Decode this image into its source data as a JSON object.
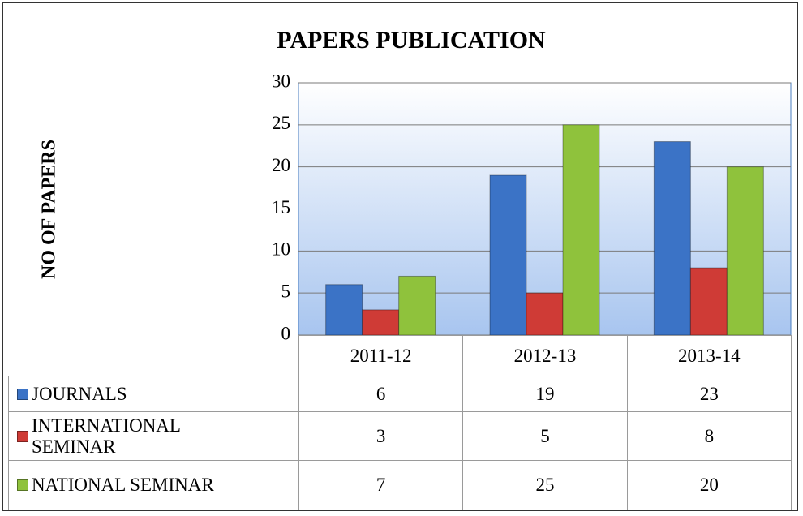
{
  "chart_data": {
    "type": "bar",
    "title": "PAPERS PUBLICATION",
    "y_label": "NO OF PAPERS",
    "categories": [
      "2011-12",
      "2012-13",
      "2013-14"
    ],
    "series": [
      {
        "name": "JOURNALS",
        "color": "#3b73c6",
        "values": [
          6,
          19,
          23
        ]
      },
      {
        "name": "INTERNATIONAL SEMINAR",
        "color": "#cf3b36",
        "values": [
          3,
          5,
          8
        ]
      },
      {
        "name": "NATIONAL SEMINAR",
        "color": "#8fc23c",
        "values": [
          7,
          25,
          20
        ]
      }
    ],
    "ylim": [
      0,
      30
    ],
    "yticks": [
      0,
      5,
      10,
      15,
      20,
      25,
      30
    ],
    "grid": true,
    "legend": "data-table"
  }
}
